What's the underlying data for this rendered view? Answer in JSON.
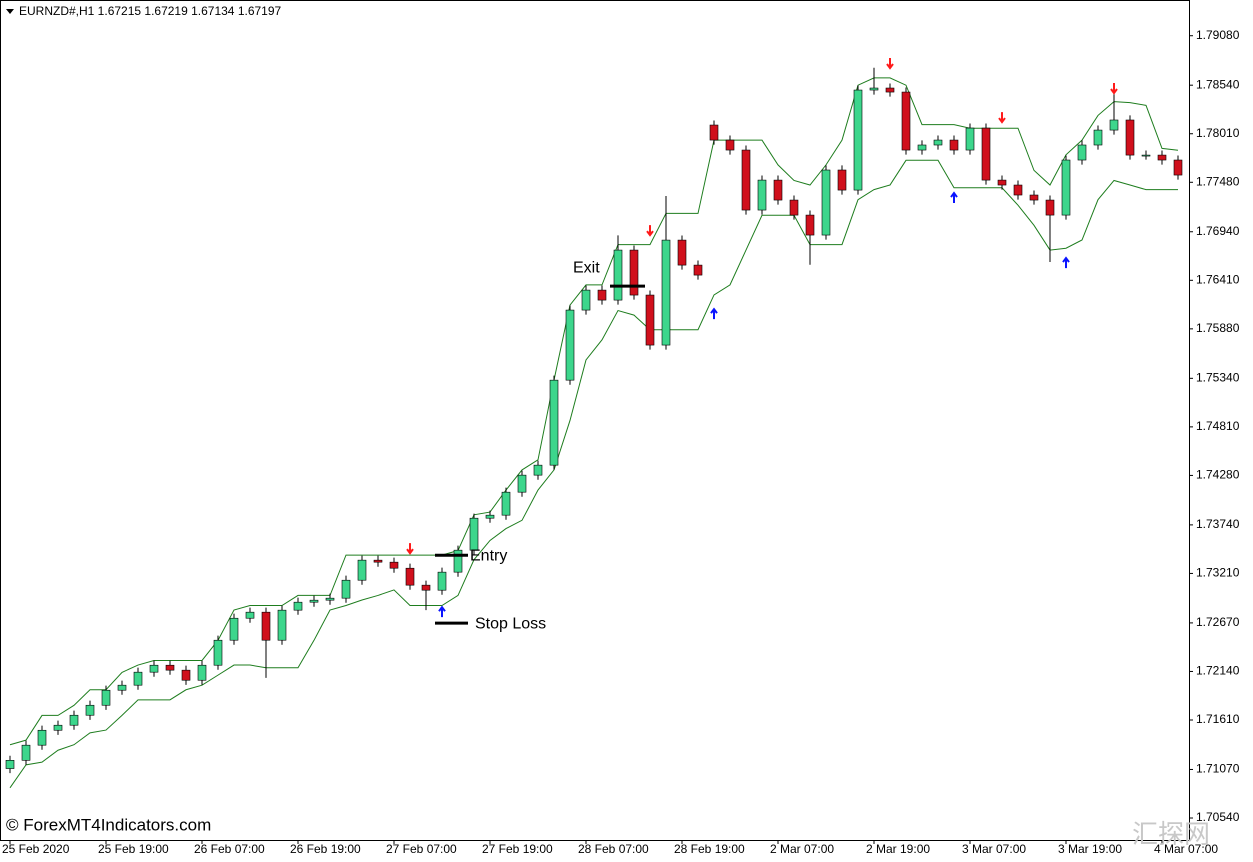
{
  "chart_data": {
    "type": "candlestick",
    "title": "EURNZD#,H1  1.67215 1.67219 1.67134 1.67197",
    "watermark": "© ForexMT4Indicators.com",
    "logo": "汇探网",
    "categories": [
      "25 Feb 2020",
      null,
      null,
      null,
      null,
      null,
      "25 Feb 19:00",
      null,
      null,
      null,
      null,
      null,
      "26 Feb 07:00",
      null,
      null,
      null,
      null,
      null,
      "26 Feb 19:00",
      null,
      null,
      null,
      null,
      null,
      "27 Feb 07:00",
      null,
      null,
      null,
      null,
      null,
      "27 Feb 19:00",
      null,
      null,
      null,
      null,
      null,
      "28 Feb 07:00",
      null,
      null,
      null,
      null,
      null,
      "28 Feb 19:00",
      null,
      null,
      null,
      null,
      null,
      "2 Mar 07:00",
      null,
      null,
      null,
      null,
      null,
      "2 Mar 19:00",
      null,
      null,
      null,
      null,
      null,
      "3 Mar 07:00",
      null,
      null,
      null,
      null,
      null,
      "3 Mar 19:00",
      null,
      null,
      null,
      null,
      null,
      "4 Mar 07:00",
      null
    ],
    "open": [
      1.7108,
      1.7117,
      1.71335,
      1.71498,
      1.71553,
      1.71662,
      1.71771,
      1.71935,
      1.7199,
      1.72132,
      1.72208,
      1.72154,
      1.72044,
      1.72208,
      1.72481,
      1.72721,
      1.72787,
      1.72481,
      1.72809,
      1.72896,
      1.72918,
      1.7294,
      1.73136,
      1.73355,
      1.73333,
      1.73267,
      1.73082,
      1.73027,
      1.73224,
      1.73464,
      1.73813,
      1.73846,
      1.74097,
      1.74283,
      1.74392,
      1.7532,
      1.76085,
      1.76303,
      1.76194,
      1.7674,
      1.76249,
      1.75703,
      1.76849,
      1.76576,
      1.78105,
      1.77941,
      1.77832,
      1.77177,
      1.77504,
      1.77286,
      1.77122,
      1.76904,
      1.77614,
      1.77395,
      1.78487,
      1.78509,
      1.78465,
      1.77832,
      1.77887,
      1.77941,
      1.77832,
      1.78072,
      1.77504,
      1.7745,
      1.77341,
      1.77286,
      1.77122,
      1.77723,
      1.77887,
      1.7805,
      1.7816,
      1.77777,
      1.77777,
      1.77723
    ],
    "high": [
      1.7122,
      1.71385,
      1.71548,
      1.71603,
      1.71712,
      1.71821,
      1.71985,
      1.7204,
      1.72182,
      1.72258,
      1.72258,
      1.72204,
      1.72258,
      1.72531,
      1.72771,
      1.72837,
      1.72837,
      1.72859,
      1.72946,
      1.72968,
      1.7299,
      1.73186,
      1.73405,
      1.73405,
      1.73383,
      1.73317,
      1.73132,
      1.73274,
      1.73514,
      1.73863,
      1.73896,
      1.74147,
      1.74333,
      1.74442,
      1.7537,
      1.76135,
      1.76353,
      1.76353,
      1.769,
      1.7679,
      1.76299,
      1.7733,
      1.76899,
      1.76626,
      1.78155,
      1.77991,
      1.77882,
      1.77554,
      1.77554,
      1.77336,
      1.77172,
      1.77664,
      1.77664,
      1.78537,
      1.7873,
      1.78559,
      1.78515,
      1.77937,
      1.77991,
      1.77991,
      1.78122,
      1.78122,
      1.77554,
      1.775,
      1.77391,
      1.77336,
      1.77773,
      1.77937,
      1.781,
      1.7849,
      1.7821,
      1.77827,
      1.77827,
      1.77773
    ],
    "low": [
      1.7103,
      1.7112,
      1.71285,
      1.71448,
      1.71503,
      1.71612,
      1.71721,
      1.71885,
      1.7194,
      1.72082,
      1.72104,
      1.71994,
      1.71994,
      1.72158,
      1.72431,
      1.72671,
      1.7207,
      1.72431,
      1.72759,
      1.72846,
      1.72868,
      1.7289,
      1.73086,
      1.73283,
      1.73217,
      1.73032,
      1.7281,
      1.72977,
      1.73174,
      1.73414,
      1.73763,
      1.73796,
      1.74047,
      1.74233,
      1.74342,
      1.7527,
      1.76035,
      1.76144,
      1.76144,
      1.76199,
      1.75653,
      1.75653,
      1.76526,
      1.76417,
      1.77891,
      1.77782,
      1.77127,
      1.77127,
      1.77236,
      1.77072,
      1.7658,
      1.76854,
      1.77345,
      1.77345,
      1.78437,
      1.78415,
      1.77782,
      1.77782,
      1.77837,
      1.77782,
      1.77782,
      1.77454,
      1.774,
      1.77291,
      1.77236,
      1.7661,
      1.77072,
      1.77673,
      1.77837,
      1.78,
      1.77727,
      1.77727,
      1.77673,
      1.77509
    ],
    "close": [
      1.7117,
      1.71335,
      1.71498,
      1.71553,
      1.71662,
      1.71771,
      1.71935,
      1.7199,
      1.72132,
      1.72208,
      1.72154,
      1.72044,
      1.72208,
      1.72481,
      1.72721,
      1.72787,
      1.72481,
      1.72809,
      1.72896,
      1.72918,
      1.7294,
      1.73136,
      1.73355,
      1.73333,
      1.73267,
      1.73082,
      1.73027,
      1.73224,
      1.73464,
      1.73813,
      1.73846,
      1.74097,
      1.74283,
      1.74392,
      1.7532,
      1.76085,
      1.76303,
      1.76194,
      1.7674,
      1.76249,
      1.75703,
      1.76849,
      1.76576,
      1.76467,
      1.77941,
      1.77832,
      1.77177,
      1.77504,
      1.77286,
      1.77122,
      1.76904,
      1.77614,
      1.77395,
      1.78487,
      1.78509,
      1.78465,
      1.77832,
      1.77887,
      1.77941,
      1.77832,
      1.78072,
      1.77504,
      1.7745,
      1.77341,
      1.77286,
      1.77122,
      1.77723,
      1.77887,
      1.7805,
      1.7816,
      1.77777,
      1.77777,
      1.77723,
      1.77559
    ],
    "up_color": "#3dd68c",
    "down_color": "#d0101c",
    "wick_color": "#000000",
    "band_color": "#1e7d1e",
    "upper_band": [
      1.7134,
      1.7139,
      1.7166,
      1.7166,
      1.7177,
      1.7194,
      1.7194,
      1.7213,
      1.7221,
      1.7226,
      1.7226,
      1.7226,
      1.7226,
      1.7248,
      1.7281,
      1.7286,
      1.7286,
      1.7286,
      1.7297,
      1.7297,
      1.7297,
      1.7341,
      1.7341,
      1.7341,
      1.7341,
      1.7341,
      1.7341,
      1.7341,
      1.7346,
      1.7385,
      1.7388,
      1.7412,
      1.7434,
      1.7445,
      1.7532,
      1.7614,
      1.7636,
      1.7636,
      1.768,
      1.768,
      1.768,
      1.7714,
      1.7714,
      1.7714,
      1.7794,
      1.7794,
      1.7794,
      1.7794,
      1.7767,
      1.775,
      1.7745,
      1.7767,
      1.7794,
      1.7854,
      1.7862,
      1.7862,
      1.7854,
      1.7811,
      1.7811,
      1.7811,
      1.7807,
      1.7807,
      1.7807,
      1.7807,
      1.7761,
      1.7745,
      1.7778,
      1.7794,
      1.7821,
      1.7836,
      1.7835,
      1.7832,
      1.7785,
      1.7783
    ],
    "lower_band": [
      1.7087,
      1.7112,
      1.7115,
      1.7128,
      1.7134,
      1.7147,
      1.715,
      1.7166,
      1.7183,
      1.7183,
      1.7183,
      1.7194,
      1.7199,
      1.721,
      1.7221,
      1.7221,
      1.7218,
      1.7218,
      1.7218,
      1.7248,
      1.7281,
      1.7286,
      1.7292,
      1.7297,
      1.7303,
      1.7286,
      1.7286,
      1.7286,
      1.7297,
      1.7336,
      1.7357,
      1.737,
      1.7379,
      1.7412,
      1.7434,
      1.7488,
      1.7554,
      1.7576,
      1.7608,
      1.7603,
      1.7587,
      1.7587,
      1.7587,
      1.7587,
      1.7625,
      1.7636,
      1.7674,
      1.7712,
      1.7712,
      1.7712,
      1.768,
      1.768,
      1.768,
      1.7729,
      1.774,
      1.7745,
      1.7772,
      1.7772,
      1.7772,
      1.7742,
      1.7742,
      1.7742,
      1.7742,
      1.7723,
      1.7701,
      1.7674,
      1.7676,
      1.7685,
      1.7729,
      1.775,
      1.7745,
      1.774,
      1.774,
      1.774
    ],
    "sell_signal_color": "#ff1a1a",
    "buy_signal_color": "#0a14ff",
    "sell_signals": [
      null,
      null,
      null,
      null,
      null,
      null,
      null,
      null,
      null,
      null,
      null,
      null,
      null,
      null,
      null,
      null,
      null,
      null,
      null,
      null,
      null,
      null,
      null,
      null,
      null,
      1.73486,
      null,
      null,
      null,
      null,
      null,
      null,
      null,
      null,
      null,
      null,
      null,
      null,
      null,
      null,
      1.76958,
      null,
      null,
      null,
      null,
      null,
      null,
      null,
      null,
      null,
      null,
      null,
      null,
      null,
      null,
      1.78782,
      null,
      null,
      null,
      null,
      null,
      null,
      1.78192,
      null,
      null,
      null,
      null,
      null,
      null,
      1.78509,
      null,
      null,
      null,
      null
    ],
    "buy_signals": [
      null,
      null,
      null,
      null,
      null,
      null,
      null,
      null,
      null,
      null,
      null,
      null,
      null,
      null,
      null,
      null,
      null,
      null,
      null,
      null,
      null,
      null,
      null,
      null,
      null,
      null,
      null,
      1.72787,
      null,
      null,
      null,
      null,
      null,
      null,
      null,
      null,
      null,
      null,
      null,
      null,
      null,
      null,
      null,
      null,
      1.76041,
      null,
      null,
      null,
      null,
      null,
      null,
      null,
      null,
      null,
      null,
      null,
      null,
      null,
      null,
      1.77308,
      null,
      null,
      null,
      null,
      null,
      null,
      1.76598,
      null,
      null,
      null,
      null,
      null,
      null,
      null
    ],
    "annotations": [
      {
        "label": "Entry",
        "value": 1.73409
      },
      {
        "label": "Exit",
        "value": 1.76347
      },
      {
        "label": "Stop Loss",
        "value": 1.72667
      }
    ],
    "ylim": [
      1.703,
      1.7947
    ],
    "yticks": [
      {
        "value": 1.7908,
        "label": "1.79080"
      },
      {
        "value": 1.7854,
        "label": "1.78540"
      },
      {
        "value": 1.7801,
        "label": "1.78010"
      },
      {
        "value": 1.7748,
        "label": "1.77480"
      },
      {
        "value": 1.7694,
        "label": "1.76940"
      },
      {
        "value": 1.7641,
        "label": "1.76410"
      },
      {
        "value": 1.7588,
        "label": "1.75880"
      },
      {
        "value": 1.7534,
        "label": "1.75340"
      },
      {
        "value": 1.7481,
        "label": "1.74810"
      },
      {
        "value": 1.7428,
        "label": "1.74280"
      },
      {
        "value": 1.7374,
        "label": "1.73740"
      },
      {
        "value": 1.7321,
        "label": "1.73210"
      },
      {
        "value": 1.7267,
        "label": "1.72670"
      },
      {
        "value": 1.7214,
        "label": "1.72140"
      },
      {
        "value": 1.7161,
        "label": "1.71610"
      },
      {
        "value": 1.7107,
        "label": "1.71070"
      },
      {
        "value": 1.7054,
        "label": "1.70540"
      }
    ],
    "grid": false
  }
}
